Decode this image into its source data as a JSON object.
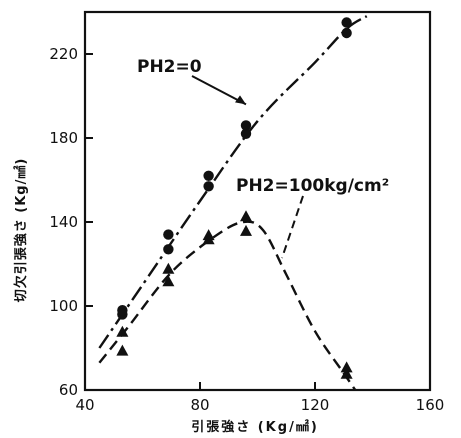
{
  "chart_data": {
    "type": "scatter",
    "xlabel": "引張強さ (Kg/㎟)",
    "ylabel": "切欠引張強さ (Kg/㎟)",
    "xlim": [
      40,
      160
    ],
    "ylim": [
      60,
      240
    ],
    "x_ticks": [
      "40",
      "80",
      "120",
      "160"
    ],
    "y_ticks": [
      "60",
      "100",
      "140",
      "180",
      "220"
    ],
    "grid": false,
    "series": [
      {
        "name": "PH2=0",
        "marker": "circle",
        "line_style": "dash-dot",
        "points": [
          [
            53,
            96
          ],
          [
            53,
            98
          ],
          [
            69,
            127
          ],
          [
            69,
            134
          ],
          [
            83,
            157
          ],
          [
            83,
            162
          ],
          [
            96,
            182
          ],
          [
            96,
            186
          ],
          [
            131,
            230
          ],
          [
            131,
            235
          ]
        ],
        "curve": [
          [
            45,
            80
          ],
          [
            60,
            110
          ],
          [
            80,
            150
          ],
          [
            100,
            188
          ],
          [
            120,
            216
          ],
          [
            131,
            232
          ],
          [
            138,
            238
          ]
        ]
      },
      {
        "name": "PH2=100kg/cm²",
        "marker": "triangle",
        "line_style": "dashed",
        "points": [
          [
            53,
            79
          ],
          [
            53,
            88
          ],
          [
            69,
            112
          ],
          [
            69,
            118
          ],
          [
            83,
            132
          ],
          [
            83,
            134
          ],
          [
            96,
            136
          ],
          [
            96,
            143
          ],
          [
            131,
            68
          ],
          [
            131,
            71
          ]
        ],
        "curve": [
          [
            45,
            73
          ],
          [
            55,
            90
          ],
          [
            70,
            116
          ],
          [
            85,
            133
          ],
          [
            95,
            140
          ],
          [
            102,
            136
          ],
          [
            110,
            115
          ],
          [
            120,
            88
          ],
          [
            130,
            68
          ],
          [
            136,
            56
          ]
        ]
      }
    ],
    "annotations": [
      {
        "text": "PH2=0",
        "series": 0
      },
      {
        "text": "PH2=100kg/cm²",
        "series": 1
      }
    ]
  }
}
